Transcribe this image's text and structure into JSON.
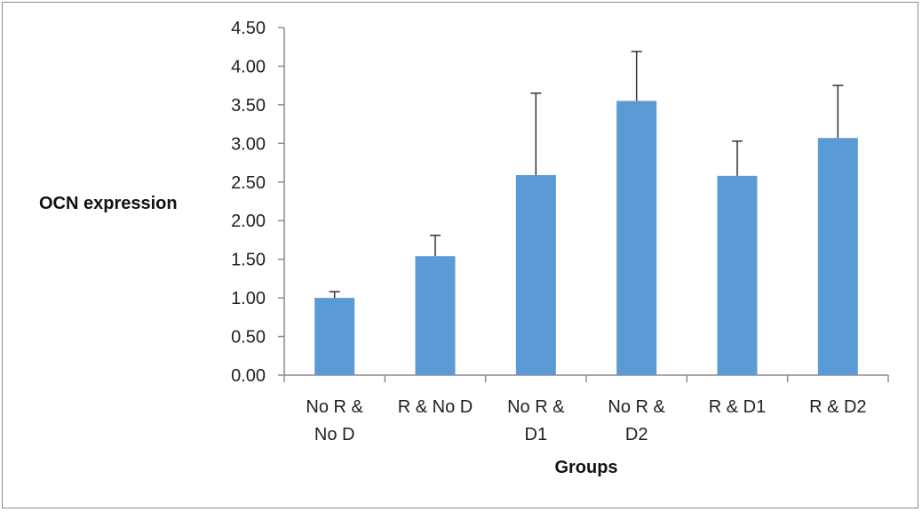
{
  "chart_data": {
    "type": "bar",
    "categories": [
      [
        "No R &",
        "No D"
      ],
      [
        "R & No D"
      ],
      [
        "No R &",
        "D1"
      ],
      [
        "No R &",
        "D2"
      ],
      [
        "R & D1"
      ],
      [
        "R & D2"
      ]
    ],
    "values": [
      1.0,
      1.54,
      2.59,
      3.55,
      2.58,
      3.07
    ],
    "error_upper": [
      1.08,
      1.81,
      3.65,
      4.19,
      3.03,
      3.75
    ],
    "xlabel": "Groups",
    "ylabel": "OCN expression",
    "ylim": [
      0,
      4.5
    ],
    "yticks": [
      "0.00",
      "0.50",
      "1.00",
      "1.50",
      "2.00",
      "2.50",
      "3.00",
      "3.50",
      "4.00",
      "4.50"
    ],
    "bar_color": "#5b9bd5",
    "error_bar_color": "#333333",
    "grid": false,
    "legend": "none"
  }
}
